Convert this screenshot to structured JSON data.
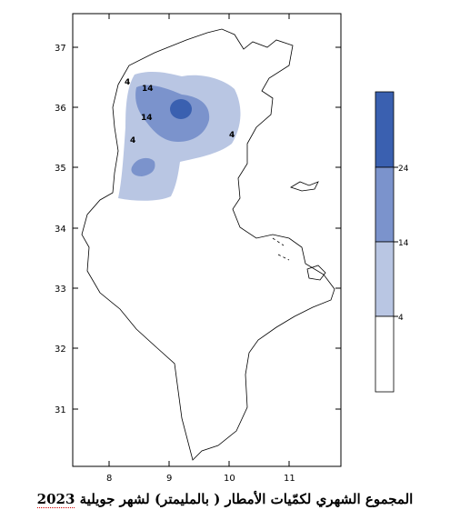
{
  "map": {
    "x_ticks": [
      "8",
      "9",
      "10",
      "11"
    ],
    "y_ticks": [
      "37",
      "36",
      "35",
      "34",
      "33",
      "32",
      "31"
    ],
    "contour_labels": [
      "4",
      "14",
      "14",
      "4",
      "4"
    ],
    "fill_colors": [
      "#ffffff",
      "#b9c6e3",
      "#7b93cc",
      "#3a60b0"
    ]
  },
  "legend": {
    "levels": [
      "4",
      "14",
      "24"
    ]
  },
  "caption": {
    "text": "المجموع الشهري لكمّيات الأمطار ( بالمليمتر) لشهر جويلية",
    "year": "2023"
  }
}
